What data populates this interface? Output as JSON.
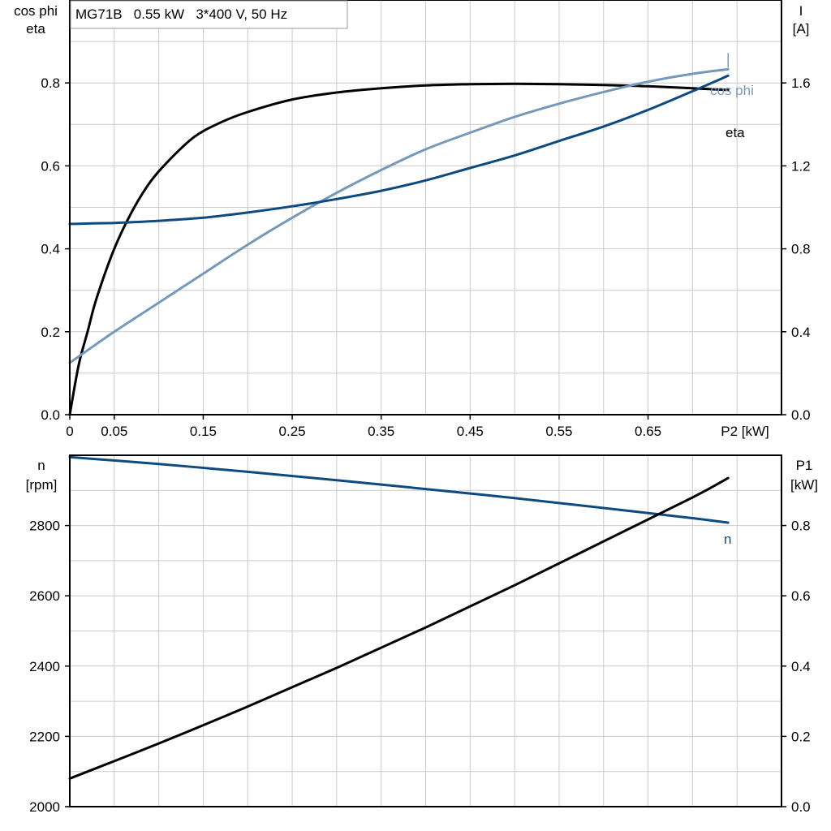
{
  "chart_data": [
    {
      "type": "line",
      "title": "MG71B   0.55 kW   3*400 V, 50 Hz",
      "xlabel": "P2 [kW]",
      "xlim": [
        0,
        0.8
      ],
      "x_ticks": [
        0,
        0.05,
        0.15,
        0.25,
        0.35,
        0.45,
        0.55,
        0.65
      ],
      "x_tick_labels": [
        "0",
        "0.05",
        "0.15",
        "0.25",
        "0.35",
        "0.45",
        "0.55",
        "0.65"
      ],
      "x_grid": [
        0,
        0.05,
        0.1,
        0.15,
        0.2,
        0.25,
        0.3,
        0.35,
        0.4,
        0.45,
        0.5,
        0.55,
        0.6,
        0.65,
        0.7,
        0.75,
        0.8
      ],
      "ylabel_left": [
        "cos phi",
        "eta"
      ],
      "ylim_left": [
        0,
        1.0
      ],
      "y_ticks_left": [
        0,
        0.2,
        0.4,
        0.6,
        0.8
      ],
      "y_tick_labels_left": [
        "0.0",
        "0.2",
        "0.4",
        "0.6",
        "0.8"
      ],
      "y_grid_left": [
        0,
        0.1,
        0.2,
        0.3,
        0.4,
        0.5,
        0.6,
        0.7,
        0.8,
        0.9
      ],
      "ylabel_right": [
        "I",
        "[A]"
      ],
      "ylim_right": [
        0,
        2.0
      ],
      "y_ticks_right": [
        0,
        0.4,
        0.8,
        1.2,
        1.6
      ],
      "y_tick_labels_right": [
        "0.0",
        "0.4",
        "0.8",
        "1.2",
        "1.6"
      ],
      "grid": true,
      "series": [
        {
          "name": "eta",
          "axis": "left",
          "color": "#000000",
          "x": [
            0,
            0.01,
            0.02,
            0.03,
            0.05,
            0.07,
            0.09,
            0.11,
            0.14,
            0.17,
            0.2,
            0.25,
            0.3,
            0.35,
            0.4,
            0.45,
            0.5,
            0.55,
            0.6,
            0.65,
            0.7,
            0.74
          ],
          "y": [
            0,
            0.12,
            0.2,
            0.28,
            0.4,
            0.49,
            0.56,
            0.61,
            0.67,
            0.705,
            0.73,
            0.76,
            0.777,
            0.787,
            0.794,
            0.797,
            0.798,
            0.797,
            0.795,
            0.792,
            0.787,
            0.783
          ]
        },
        {
          "name": "cos phi",
          "axis": "left",
          "color": "#7599bb",
          "x": [
            0,
            0.05,
            0.1,
            0.15,
            0.2,
            0.25,
            0.3,
            0.35,
            0.4,
            0.45,
            0.5,
            0.55,
            0.6,
            0.65,
            0.7,
            0.74
          ],
          "y": [
            0.125,
            0.2,
            0.27,
            0.34,
            0.41,
            0.475,
            0.535,
            0.59,
            0.64,
            0.68,
            0.718,
            0.75,
            0.778,
            0.803,
            0.822,
            0.833
          ]
        },
        {
          "name": "I",
          "axis": "right",
          "color": "#0d4a80",
          "x": [
            0,
            0.05,
            0.1,
            0.15,
            0.2,
            0.25,
            0.3,
            0.35,
            0.4,
            0.45,
            0.5,
            0.55,
            0.6,
            0.65,
            0.7,
            0.74
          ],
          "y": [
            0.92,
            0.925,
            0.935,
            0.95,
            0.975,
            1.005,
            1.04,
            1.08,
            1.13,
            1.19,
            1.25,
            1.32,
            1.39,
            1.47,
            1.56,
            1.635
          ]
        }
      ],
      "series_labels": [
        "cos phi",
        "eta"
      ]
    },
    {
      "type": "line",
      "xlim": [
        0,
        0.8
      ],
      "x_grid": [
        0,
        0.05,
        0.1,
        0.15,
        0.2,
        0.25,
        0.3,
        0.35,
        0.4,
        0.45,
        0.5,
        0.55,
        0.6,
        0.65,
        0.7,
        0.75,
        0.8
      ],
      "ylabel_left": [
        "n",
        "[rpm]"
      ],
      "ylim_left": [
        2000,
        3000
      ],
      "y_ticks_left": [
        2000,
        2200,
        2400,
        2600,
        2800
      ],
      "y_tick_labels_left": [
        "2000",
        "2200",
        "2400",
        "2600",
        "2800"
      ],
      "y_grid_left": [
        2000,
        2100,
        2200,
        2300,
        2400,
        2500,
        2600,
        2700,
        2800,
        2900
      ],
      "ylabel_right": [
        "P1",
        "[kW]"
      ],
      "ylim_right": [
        0,
        1.0
      ],
      "y_ticks_right": [
        0,
        0.2,
        0.4,
        0.6,
        0.8
      ],
      "y_tick_labels_right": [
        "0.0",
        "0.2",
        "0.4",
        "0.6",
        "0.8"
      ],
      "grid": true,
      "series": [
        {
          "name": "n",
          "axis": "left",
          "color": "#0d4a80",
          "x": [
            0,
            0.1,
            0.2,
            0.3,
            0.4,
            0.5,
            0.6,
            0.7,
            0.74
          ],
          "y": [
            2995,
            2975,
            2953,
            2929,
            2904,
            2878,
            2850,
            2821,
            2808
          ]
        },
        {
          "name": "P1",
          "axis": "right",
          "color": "#000000",
          "x": [
            0,
            0.1,
            0.2,
            0.3,
            0.4,
            0.5,
            0.6,
            0.7,
            0.74
          ],
          "y": [
            0.08,
            0.18,
            0.285,
            0.395,
            0.51,
            0.63,
            0.755,
            0.88,
            0.935
          ]
        }
      ],
      "series_labels": [
        "n"
      ]
    }
  ]
}
